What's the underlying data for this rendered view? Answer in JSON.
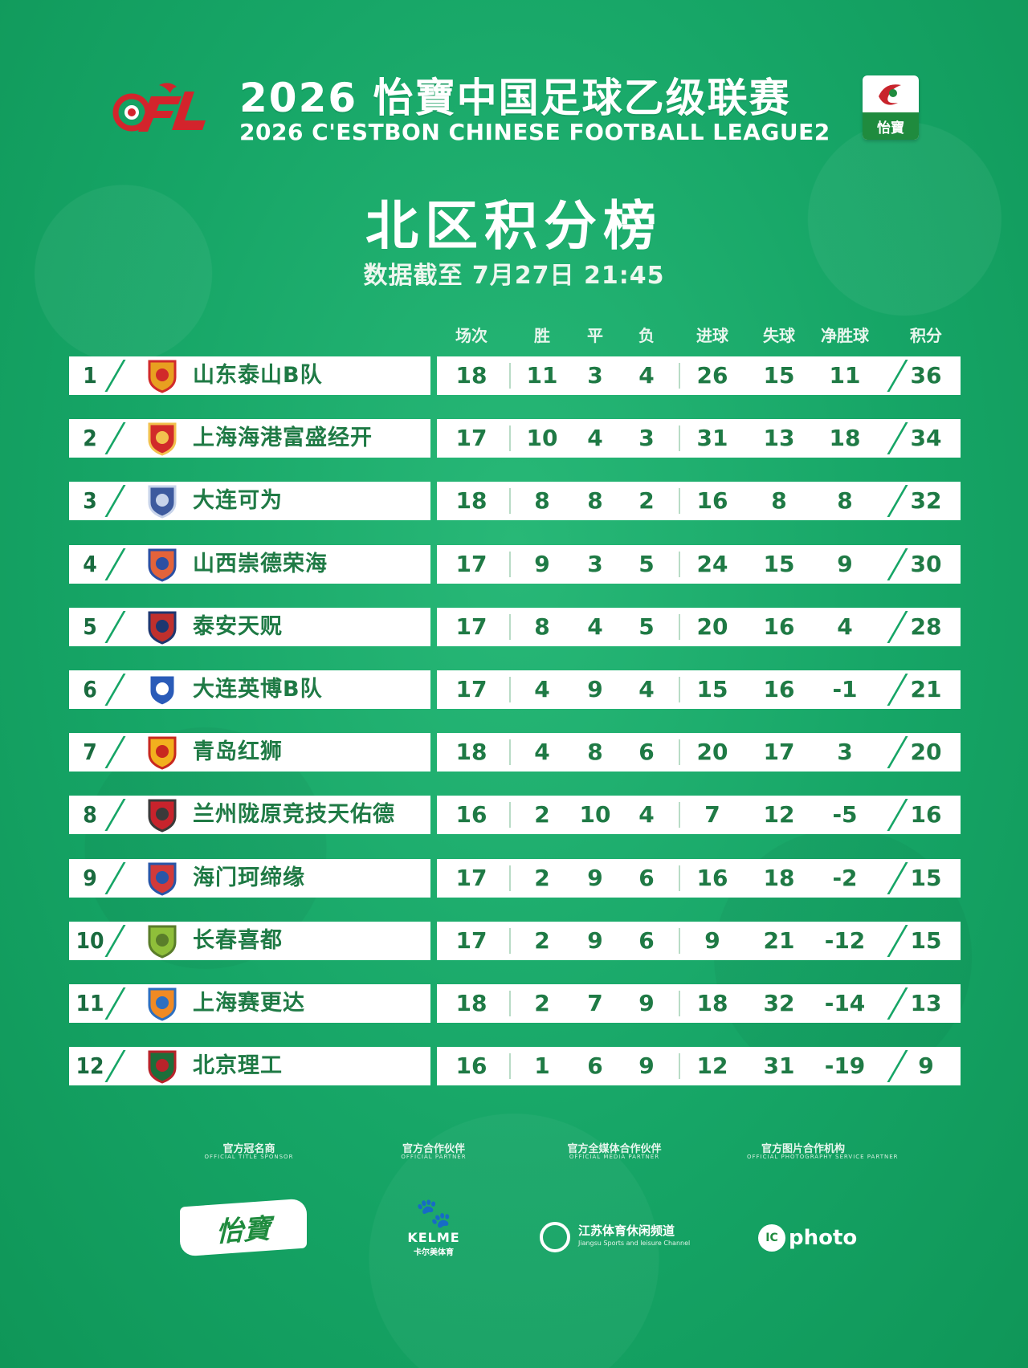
{
  "header": {
    "title_cn": "2026 怡寶中国足球乙级联赛",
    "title_en": "2026 C'ESTBON CHINESE FOOTBALL LEAGUE2",
    "board_title": "北区积分榜",
    "update_time": "数据截至 7月27日 21:45",
    "cfl_logo_text": "CFL",
    "sponsor_badge_text": "怡寶"
  },
  "columns": {
    "played": "场次",
    "won": "胜",
    "drawn": "平",
    "lost": "负",
    "goals_for": "进球",
    "goals_against": "失球",
    "goal_diff": "净胜球",
    "points": "积分"
  },
  "standings": [
    {
      "rank": "1",
      "team": "山东泰山B队",
      "played": "18",
      "won": "11",
      "drawn": "3",
      "lost": "4",
      "gf": "26",
      "ga": "15",
      "gd": "11",
      "pts": "36",
      "crest_color": "#e8a020",
      "crest_accent": "#d12a2a"
    },
    {
      "rank": "2",
      "team": "上海海港富盛经开",
      "played": "17",
      "won": "10",
      "drawn": "4",
      "lost": "3",
      "gf": "31",
      "ga": "13",
      "gd": "18",
      "pts": "34",
      "crest_color": "#d12a2a",
      "crest_accent": "#f2c14e"
    },
    {
      "rank": "3",
      "team": "大连可为",
      "played": "18",
      "won": "8",
      "drawn": "8",
      "lost": "2",
      "gf": "16",
      "ga": "8",
      "gd": "8",
      "pts": "32",
      "crest_color": "#3d5a9e",
      "crest_accent": "#c7d3ea"
    },
    {
      "rank": "4",
      "team": "山西崇德荣海",
      "played": "17",
      "won": "9",
      "drawn": "3",
      "lost": "5",
      "gf": "24",
      "ga": "15",
      "gd": "9",
      "pts": "30",
      "crest_color": "#e3633a",
      "crest_accent": "#2b4fa3"
    },
    {
      "rank": "5",
      "team": "泰安天贶",
      "played": "17",
      "won": "8",
      "drawn": "4",
      "lost": "5",
      "gf": "20",
      "ga": "16",
      "gd": "4",
      "pts": "28",
      "crest_color": "#c0302d",
      "crest_accent": "#1e3770"
    },
    {
      "rank": "6",
      "team": "大连英博B队",
      "played": "17",
      "won": "4",
      "drawn": "9",
      "lost": "4",
      "gf": "15",
      "ga": "16",
      "gd": "-1",
      "pts": "21",
      "crest_color": "#2a5bb8",
      "crest_accent": "#ffffff"
    },
    {
      "rank": "7",
      "team": "青岛红狮",
      "played": "18",
      "won": "4",
      "drawn": "8",
      "lost": "6",
      "gf": "20",
      "ga": "17",
      "gd": "3",
      "pts": "20",
      "crest_color": "#f2b01e",
      "crest_accent": "#c8281f"
    },
    {
      "rank": "8",
      "team": "兰州陇原竞技天佑德",
      "played": "16",
      "won": "2",
      "drawn": "10",
      "lost": "4",
      "gf": "7",
      "ga": "12",
      "gd": "-5",
      "pts": "16",
      "crest_color": "#c8232c",
      "crest_accent": "#3a3a3a"
    },
    {
      "rank": "9",
      "team": "海门珂缔缘",
      "played": "17",
      "won": "2",
      "drawn": "9",
      "lost": "6",
      "gf": "16",
      "ga": "18",
      "gd": "-2",
      "pts": "15",
      "crest_color": "#d23a3a",
      "crest_accent": "#2856a8"
    },
    {
      "rank": "10",
      "team": "长春喜都",
      "played": "17",
      "won": "2",
      "drawn": "9",
      "lost": "6",
      "gf": "9",
      "ga": "21",
      "gd": "-12",
      "pts": "15",
      "crest_color": "#8fbf3a",
      "crest_accent": "#5a7d2a"
    },
    {
      "rank": "11",
      "team": "上海赛更达",
      "played": "18",
      "won": "2",
      "drawn": "7",
      "lost": "9",
      "gf": "18",
      "ga": "32",
      "gd": "-14",
      "pts": "13",
      "crest_color": "#f08a24",
      "crest_accent": "#2d6fc0"
    },
    {
      "rank": "12",
      "team": "北京理工",
      "played": "16",
      "won": "1",
      "drawn": "6",
      "lost": "9",
      "gf": "12",
      "ga": "31",
      "gd": "-19",
      "pts": "9",
      "crest_color": "#1d6e3a",
      "crest_accent": "#b8232a"
    }
  ],
  "footer": {
    "sponsors": [
      {
        "caption": "官方冠名商",
        "sub": "OFFICIAL TITLE SPONSOR",
        "brand": "怡寶"
      },
      {
        "caption": "官方合作伙伴",
        "sub": "OFFICIAL PARTNER",
        "brand": "KELME",
        "brand_sub": "卡尔美体育"
      },
      {
        "caption": "官方全媒体合作伙伴",
        "sub": "OFFICIAL MEDIA PARTNER",
        "brand": "江苏体育休闲频道",
        "brand_sub": "Jiangsu Sports and leisure Channel"
      },
      {
        "caption": "官方图片合作机构",
        "sub": "OFFICIAL PHOTOGRAPHY SERVICE PARTNER",
        "brand": "photo",
        "brand_mark": "IC"
      }
    ]
  },
  "colors": {
    "background": "#16a566",
    "row_text": "#1f7a45",
    "rank_text": "#1a6b3f",
    "cfl_red": "#d3242c"
  }
}
